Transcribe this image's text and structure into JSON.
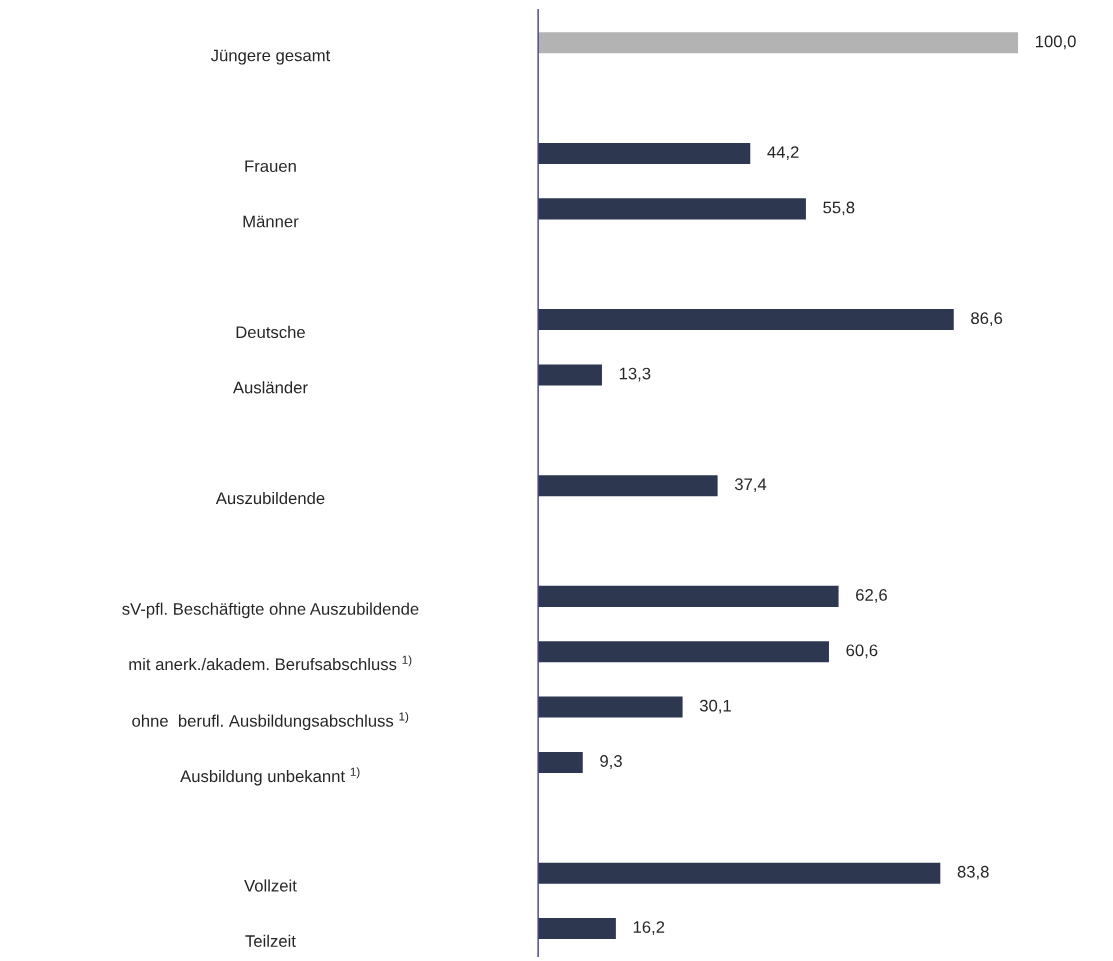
{
  "chart_data": {
    "type": "bar",
    "orientation": "horizontal",
    "categories": [
      "Jüngere gesamt",
      null,
      "Frauen",
      "Männer",
      null,
      "Deutsche",
      "Ausländer",
      null,
      "Auszubildende",
      null,
      "sV-pfl. Beschäftigte ohne Auszubildende",
      "mit anerk./akadem. Berufsabschluss $^{1)}$",
      "ohne  berufl. Ausbildungsabschluss $^{1)}$",
      "Ausbildung unbekannt $^{1)}$",
      null,
      "Vollzeit",
      "Teilzeit"
    ],
    "values": [
      100.0,
      null,
      44.2,
      55.8,
      null,
      86.6,
      13.3,
      null,
      37.4,
      null,
      62.6,
      60.6,
      30.1,
      9.3,
      null,
      83.8,
      16.2
    ],
    "value_labels": [
      "100,0",
      null,
      "44,2",
      "55,8",
      null,
      "86,6",
      "13,3",
      null,
      "37,4",
      null,
      "62,6",
      "60,6",
      "30,1",
      "9,3",
      null,
      "83,8",
      "16,2"
    ],
    "colors": [
      "#b3b3b3",
      null,
      "#2e3750",
      "#2e3750",
      null,
      "#2e3750",
      "#2e3750",
      null,
      "#2e3750",
      null,
      "#2e3750",
      "#2e3750",
      "#2e3750",
      "#2e3750",
      null,
      "#2e3750",
      "#2e3750"
    ],
    "stacked": false
  }
}
